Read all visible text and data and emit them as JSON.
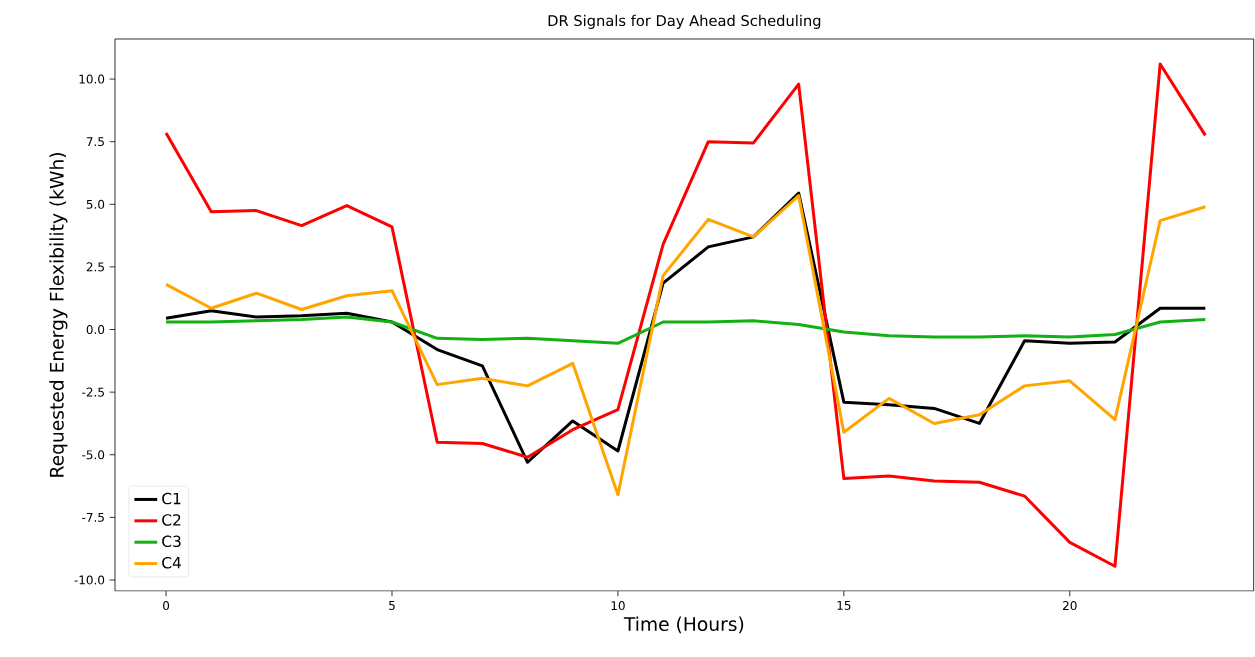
{
  "chart_data": {
    "type": "line",
    "title": "DR Signals for Day Ahead Scheduling",
    "xlabel": "Time (Hours)",
    "ylabel": "Requested Energy Flexibility (kWh)",
    "x": [
      0,
      1,
      2,
      3,
      4,
      5,
      6,
      7,
      8,
      9,
      10,
      11,
      12,
      13,
      14,
      15,
      16,
      17,
      18,
      19,
      20,
      21,
      22,
      23
    ],
    "series": [
      {
        "name": "C1",
        "color": "#000000",
        "values": [
          0.45,
          0.75,
          0.5,
          0.55,
          0.65,
          0.3,
          -0.8,
          -1.45,
          -5.3,
          -3.65,
          -4.85,
          1.85,
          3.3,
          3.7,
          5.45,
          -2.9,
          -3.0,
          -3.15,
          -3.75,
          -0.45,
          -0.55,
          -0.5,
          0.85,
          0.85
        ]
      },
      {
        "name": "C2",
        "color": "#ff0000",
        "values": [
          7.85,
          4.7,
          4.75,
          4.15,
          4.95,
          4.1,
          -4.5,
          -4.55,
          -5.1,
          -4.0,
          -3.2,
          3.4,
          7.5,
          7.45,
          9.8,
          -5.95,
          -5.85,
          -6.05,
          -6.1,
          -6.65,
          -8.5,
          -9.45,
          10.6,
          7.75
        ]
      },
      {
        "name": "C3",
        "color": "#12b012",
        "values": [
          0.3,
          0.3,
          0.35,
          0.4,
          0.5,
          0.3,
          -0.35,
          -0.4,
          -0.35,
          -0.45,
          -0.55,
          0.3,
          0.3,
          0.35,
          0.2,
          -0.1,
          -0.25,
          -0.3,
          -0.3,
          -0.25,
          -0.3,
          -0.2,
          0.3,
          0.4
        ]
      },
      {
        "name": "C4",
        "color": "#ffa500",
        "values": [
          1.8,
          0.85,
          1.45,
          0.8,
          1.35,
          1.55,
          -2.2,
          -1.95,
          -2.25,
          -1.35,
          -6.6,
          2.15,
          4.4,
          3.7,
          5.35,
          -4.1,
          -2.75,
          -3.75,
          -3.4,
          -2.25,
          -2.05,
          -3.6,
          4.35,
          4.9
        ]
      }
    ],
    "xlim": [
      -1.13,
      24.07
    ],
    "ylim": [
      -10.44,
      11.6
    ],
    "xticks": [
      0,
      5,
      10,
      15,
      20
    ],
    "yticks": [
      {
        "value": -10,
        "label": "-10.0"
      },
      {
        "value": -7.5,
        "label": "-7.5"
      },
      {
        "value": -5,
        "label": "-5.0"
      },
      {
        "value": -2.5,
        "label": "-2.5"
      },
      {
        "value": 0,
        "label": "0.0"
      },
      {
        "value": 2.5,
        "label": "2.5"
      },
      {
        "value": 5,
        "label": "5.0"
      },
      {
        "value": 7.5,
        "label": "7.5"
      },
      {
        "value": 10,
        "label": "10.0"
      }
    ],
    "legend": "bottom left"
  }
}
